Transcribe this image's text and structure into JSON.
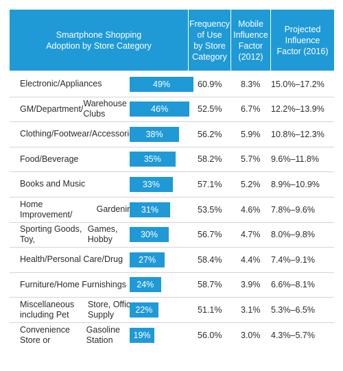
{
  "header": {
    "col0": "Smartphone Shopping\nAdoption by Store Category",
    "col1": "Frequency\nof Use\nby Store\nCategory",
    "col2": "Mobile\nInfluence\nFactor\n(2012)",
    "col3": "Projected\nInfluence\nFactor (2016)"
  },
  "colors": {
    "accent": "#1f9ad6",
    "separator": "#d3d3d3"
  },
  "chart_data": {
    "type": "table",
    "title": "",
    "columns": [
      "Smartphone Shopping Adoption by Store Category",
      "Frequency of Use by Store Category",
      "Mobile Influence Factor (2012)",
      "Projected Influence Factor (2016)"
    ],
    "bar_scale_max": 50,
    "rows": [
      {
        "category": "Electronic/Appliances",
        "adoption_value": 49,
        "adoption": "49%",
        "frequency": "60.9%",
        "factor_2012": "8.3%",
        "factor_2016": "15.0%–17.2%"
      },
      {
        "category": "GM/Department/\nWarehouse Clubs",
        "adoption_value": 46,
        "adoption": "46%",
        "frequency": "52.5%",
        "factor_2012": "6.7%",
        "factor_2016": "12.2%–13.9%"
      },
      {
        "category": "Clothing/Footwear/\nAccessories",
        "adoption_value": 38,
        "adoption": "38%",
        "frequency": "56.2%",
        "factor_2012": "5.9%",
        "factor_2016": "10.8%–12.3%"
      },
      {
        "category": "Food/Beverage",
        "adoption_value": 35,
        "adoption": "35%",
        "frequency": "58.2%",
        "factor_2012": "5.7%",
        "factor_2016": "9.6%–11.8%"
      },
      {
        "category": "Books and Music",
        "adoption_value": 33,
        "adoption": "33%",
        "frequency": "57.1%",
        "factor_2012": "5.2%",
        "factor_2016": "8.9%–10.9%"
      },
      {
        "category": "Home Improvement/\nGardening",
        "adoption_value": 31,
        "adoption": "31%",
        "frequency": "53.5%",
        "factor_2012": "4.6%",
        "factor_2016": "7.8%–9.6%"
      },
      {
        "category": "Sporting Goods, Toy,\nGames, Hobby",
        "adoption_value": 30,
        "adoption": "30%",
        "frequency": "56.7%",
        "factor_2012": "4.7%",
        "factor_2016": "8.0%–9.8%"
      },
      {
        "category": "Health/Personal Care/Drug",
        "adoption_value": 27,
        "adoption": "27%",
        "frequency": "58.4%",
        "factor_2012": "4.4%",
        "factor_2016": "7.4%–9.1%"
      },
      {
        "category": "Furniture/Home Furnishings",
        "adoption_value": 24,
        "adoption": "24%",
        "frequency": "58.7%",
        "factor_2012": "3.9%",
        "factor_2016": "6.6%–8.1%"
      },
      {
        "category": "Miscellaneous including Pet\nStore, Office Supply",
        "adoption_value": 22,
        "adoption": "22%",
        "frequency": "51.1%",
        "factor_2012": "3.1%",
        "factor_2016": "5.3%–6.5%"
      },
      {
        "category": "Convenience Store or\nGasoline Station",
        "adoption_value": 19,
        "adoption": "19%",
        "frequency": "56.0%",
        "factor_2012": "3.0%",
        "factor_2016": "4.3%–5.7%"
      }
    ]
  }
}
